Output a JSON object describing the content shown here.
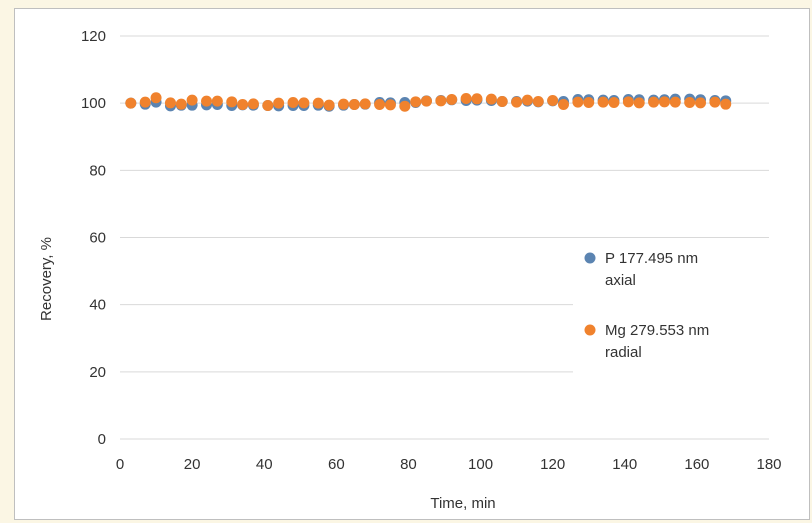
{
  "chart_data": {
    "type": "scatter",
    "title": "",
    "xlabel": "Time, min",
    "ylabel": "Recovery, %",
    "xlim": [
      0,
      180
    ],
    "ylim": [
      0,
      120
    ],
    "xticks": [
      0,
      20,
      40,
      60,
      80,
      100,
      120,
      140,
      160,
      180
    ],
    "yticks": [
      0,
      20,
      40,
      60,
      80,
      100,
      120
    ],
    "grid": "horizontal",
    "legend_position": "right",
    "series": [
      {
        "name": "P 177.495 nm axial",
        "legend_lines": [
          "P 177.495 nm",
          "axial"
        ],
        "color": "#5b84b1",
        "x": [
          3,
          7,
          10,
          14,
          17,
          20,
          24,
          27,
          31,
          34,
          37,
          41,
          44,
          48,
          51,
          55,
          58,
          62,
          65,
          68,
          72,
          75,
          79,
          82,
          85,
          89,
          92,
          96,
          99,
          103,
          106,
          110,
          113,
          116,
          120,
          123,
          127,
          130,
          134,
          137,
          141,
          144,
          148,
          151,
          154,
          158,
          161,
          165,
          168
        ],
        "y": [
          100,
          99.7,
          100.3,
          99.2,
          99.4,
          99.4,
          99.5,
          99.6,
          99.3,
          99.5,
          99.4,
          99.3,
          99.2,
          99.3,
          99.3,
          99.4,
          99.1,
          99.4,
          99.6,
          99.7,
          100.2,
          100.1,
          100.2,
          100.2,
          100.7,
          100.8,
          101,
          100.8,
          100.9,
          100.8,
          100.5,
          100.5,
          100.6,
          100.4,
          100.7,
          100.5,
          101.1,
          101,
          100.9,
          100.8,
          101.1,
          101,
          100.9,
          101,
          101.2,
          101.2,
          101,
          100.8,
          100.7
        ]
      },
      {
        "name": "Mg 279.553 nm radial",
        "legend_lines": [
          "Mg 279.553 nm",
          "radial"
        ],
        "color": "#f0822d",
        "x": [
          3,
          7,
          10,
          14,
          17,
          20,
          24,
          27,
          31,
          34,
          37,
          41,
          44,
          48,
          51,
          55,
          58,
          62,
          65,
          68,
          72,
          75,
          79,
          82,
          85,
          89,
          92,
          96,
          99,
          103,
          106,
          110,
          113,
          116,
          120,
          123,
          127,
          130,
          134,
          137,
          141,
          144,
          148,
          151,
          154,
          158,
          161,
          165,
          168
        ],
        "y": [
          100,
          100.3,
          101.6,
          100.1,
          99.7,
          100.9,
          100.6,
          100.6,
          100.4,
          99.6,
          99.8,
          99.3,
          100,
          100.2,
          100.1,
          100,
          99.4,
          99.7,
          99.6,
          99.8,
          99.6,
          99.5,
          99.1,
          100.4,
          100.6,
          100.7,
          101.1,
          101.4,
          101.3,
          101.2,
          100.5,
          100.3,
          100.9,
          100.5,
          100.8,
          99.6,
          100.3,
          100.2,
          100.3,
          100.2,
          100.4,
          100.1,
          100.3,
          100.4,
          100.3,
          100.2,
          100.1,
          100.3,
          99.7
        ]
      }
    ]
  }
}
